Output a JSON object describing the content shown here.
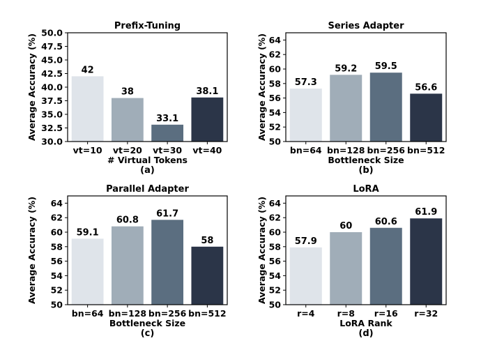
{
  "palette": [
    "#dfe4ea",
    "#a0adb8",
    "#5b6e80",
    "#2b3548"
  ],
  "chart_data": [
    {
      "type": "bar",
      "title": "Prefix-Tuning",
      "xlabel": "# Virtual Tokens",
      "ylabel": "Average Accuracy (%)",
      "sublabel": "(a)",
      "categories": [
        "vt=10",
        "vt=20",
        "vt=30",
        "vt=40"
      ],
      "values": [
        42,
        38,
        33.1,
        38.1
      ],
      "value_labels": [
        "42",
        "38",
        "33.1",
        "38.1"
      ],
      "ylim": [
        30,
        50
      ],
      "yticks": [
        "30.0",
        "32.5",
        "35.0",
        "37.5",
        "40.0",
        "42.5",
        "45.0",
        "47.5",
        "50.0"
      ],
      "ytick_values": [
        30,
        32.5,
        35,
        37.5,
        40,
        42.5,
        45,
        47.5,
        50
      ]
    },
    {
      "type": "bar",
      "title": "Series Adapter",
      "xlabel": "Bottleneck Size",
      "ylabel": "Average Accuracy (%)",
      "sublabel": "(b)",
      "categories": [
        "bn=64",
        "bn=128",
        "bn=256",
        "bn=512"
      ],
      "values": [
        57.3,
        59.2,
        59.5,
        56.6
      ],
      "value_labels": [
        "57.3",
        "59.2",
        "59.5",
        "56.6"
      ],
      "ylim": [
        50,
        65
      ],
      "yticks": [
        "50",
        "52",
        "54",
        "56",
        "58",
        "60",
        "62",
        "64"
      ],
      "ytick_values": [
        50,
        52,
        54,
        56,
        58,
        60,
        62,
        64
      ]
    },
    {
      "type": "bar",
      "title": "Parallel Adapter",
      "xlabel": "Bottleneck Size",
      "ylabel": "Average Accuracy (%)",
      "sublabel": "(c)",
      "categories": [
        "bn=64",
        "bn=128",
        "bn=256",
        "bn=512"
      ],
      "values": [
        59.1,
        60.8,
        61.7,
        58
      ],
      "value_labels": [
        "59.1",
        "60.8",
        "61.7",
        "58"
      ],
      "ylim": [
        50,
        65
      ],
      "yticks": [
        "50",
        "52",
        "54",
        "56",
        "58",
        "60",
        "62",
        "64"
      ],
      "ytick_values": [
        50,
        52,
        54,
        56,
        58,
        60,
        62,
        64
      ]
    },
    {
      "type": "bar",
      "title": "LoRA",
      "xlabel": "LoRA Rank",
      "ylabel": "Average Accuracy (%)",
      "sublabel": "(d)",
      "categories": [
        "r=4",
        "r=8",
        "r=16",
        "r=32"
      ],
      "values": [
        57.9,
        60,
        60.6,
        61.9
      ],
      "value_labels": [
        "57.9",
        "60",
        "60.6",
        "61.9"
      ],
      "ylim": [
        50,
        65
      ],
      "yticks": [
        "50",
        "52",
        "54",
        "56",
        "58",
        "60",
        "62",
        "64"
      ],
      "ytick_values": [
        50,
        52,
        54,
        56,
        58,
        60,
        62,
        64
      ]
    }
  ]
}
